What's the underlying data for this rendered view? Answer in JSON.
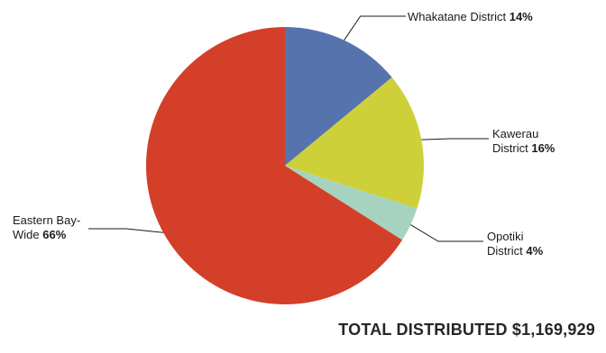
{
  "chart_data": {
    "type": "pie",
    "slices": [
      {
        "label": "Whakatane District",
        "value": 14,
        "value_label": "14%",
        "color": "#5673AE"
      },
      {
        "label": "Kawerau District",
        "value": 16,
        "value_label": "16%",
        "color": "#CED03A"
      },
      {
        "label": "Opotiki District",
        "value": 4,
        "value_label": "4%",
        "color": "#A6D3C0"
      },
      {
        "label": "Eastern Bay-Wide",
        "value": 66,
        "value_label": "66%",
        "color": "#D33F28"
      }
    ],
    "labels": {
      "whakatane": {
        "name": "Whakatane District",
        "pct": "14%"
      },
      "kawerau": {
        "line1": "Kawerau",
        "line2": "District",
        "pct": "16%"
      },
      "opotiki": {
        "line1": "Opotiki",
        "line2": "District",
        "pct": "4%"
      },
      "eastern": {
        "line1": "Eastern Bay-",
        "line2": "Wide",
        "pct": "66%"
      }
    },
    "total_label": "TOTAL DISTRIBUTED $1,169,929"
  }
}
